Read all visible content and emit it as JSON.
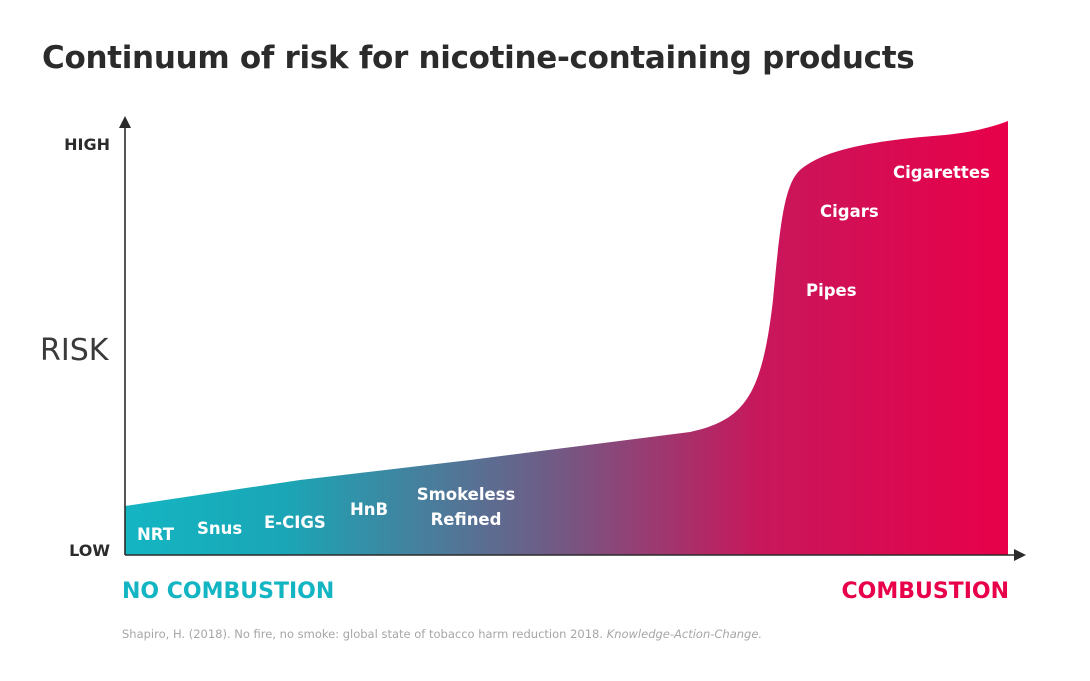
{
  "title": "Continuum of risk for nicotine-containing products",
  "colors": {
    "no_combustion": "#14b5c3",
    "mid": "#6f5c86",
    "combustion": "#e8004a",
    "text_dark": "#2b2b2b",
    "source": "#a6a6a6"
  },
  "y_axis": {
    "title": "RISK",
    "high_label": "HIGH",
    "low_label": "LOW"
  },
  "x_axis": {
    "left_label": "NO COMBUSTION",
    "right_label": "COMBUSTION"
  },
  "products": [
    {
      "label": "NRT"
    },
    {
      "label": "Snus"
    },
    {
      "label": "E-CIGS"
    },
    {
      "label": "HnB"
    },
    {
      "label": "Smokeless",
      "label2": "Refined"
    },
    {
      "label": "Pipes"
    },
    {
      "label": "Cigars"
    },
    {
      "label": "Cigarettes"
    }
  ],
  "source": {
    "text": "Shapiro, H. (2018). No fire, no smoke: global state of tobacco harm reduction 2018.",
    "italic": "Knowledge-Action-Change."
  }
}
